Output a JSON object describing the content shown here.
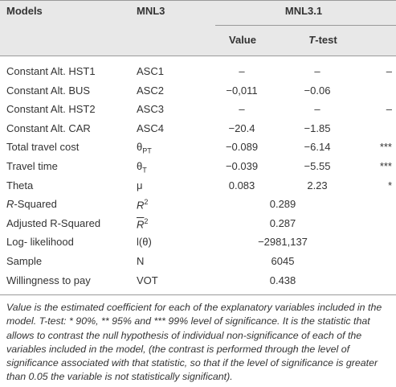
{
  "table": {
    "header": {
      "models": "Models",
      "mnl3": "MNL3",
      "mnl31": "MNL3.1",
      "value": "Value",
      "ttest": {
        "italic": "T",
        "text": "-test"
      }
    },
    "rows": [
      {
        "model": "Constant Alt. HST1",
        "symbol": {
          "base": "ASC1"
        },
        "value": "–",
        "ttest": "–",
        "sig": "–"
      },
      {
        "model": "Constant Alt. BUS",
        "symbol": {
          "base": "ASC2"
        },
        "value": "−0,011",
        "ttest": "−0.06"
      },
      {
        "model": "Constant Alt. HST2",
        "symbol": {
          "base": "ASC3"
        },
        "value": "–",
        "ttest": "–",
        "sig": "–"
      },
      {
        "model": "Constant Alt. CAR",
        "symbol": {
          "base": "ASC4"
        },
        "value": "−20.4",
        "ttest": "−1.85"
      },
      {
        "model": "Total travel cost",
        "symbol": {
          "base": "θ",
          "sub": "PT"
        },
        "value": "−0.089",
        "ttest": "−6.14",
        "sig": "***"
      },
      {
        "model": "Travel time",
        "symbol": {
          "base": "θ",
          "sub": "T"
        },
        "value": "−0.039",
        "ttest": "−5.55",
        "sig": "***"
      },
      {
        "model": "Theta",
        "symbol": {
          "base": "μ"
        },
        "value": "0.083",
        "ttest": "2.23",
        "sig": "*"
      },
      {
        "model": {
          "italic": "R",
          "text": "-Squared"
        },
        "symbol": {
          "base": "R",
          "sup": "2",
          "italic": true
        },
        "merged": "0.289"
      },
      {
        "model": "Adjusted R-Squared",
        "symbol": {
          "base": "R",
          "sup": "2",
          "italic": true,
          "overline": true
        },
        "merged": "0.287"
      },
      {
        "model": "Log- likelihood",
        "symbol": {
          "base": "l(θ)"
        },
        "merged": "−2981,137"
      },
      {
        "model": "Sample",
        "symbol": {
          "base": "N"
        },
        "merged": "6045"
      },
      {
        "model": "Willingness to pay",
        "symbol": {
          "base": "VOT"
        },
        "merged": "0.438"
      }
    ]
  },
  "footnote": "Value is the estimated coefficient for each of the explanatory variables included in the model. T-test: * 90%, ** 95% and *** 99% level of significance. It is the statistic that allows to contrast the null hypothesis of individual non-significance of each of the variables included in the model, (the contrast is performed through the level of significance associated with that statistic, so that if the level of significance is greater than 0.05 the variable is not statistically significant)."
}
